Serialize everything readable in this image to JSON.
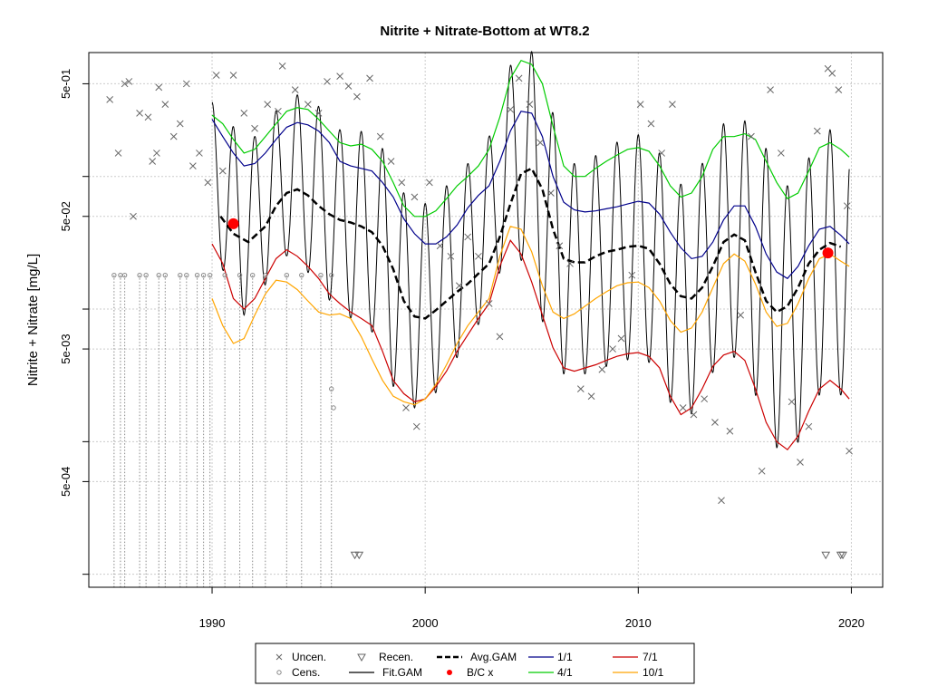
{
  "chart_data": {
    "type": "scatter",
    "title": "Nitrite + Nitrate-Bottom at WT8.2",
    "xlabel": "",
    "ylabel": "Nitrite + Nitrate [mg/L]",
    "y_scale": "log",
    "xlim": [
      1984.3,
      2021.3
    ],
    "ylim": [
      8.5e-05,
      0.82
    ],
    "x_ticks": [
      1990,
      2000,
      2010,
      2020
    ],
    "y_tick_labels": [
      "5e-04",
      "5e-03",
      "5e-02",
      "5e-01"
    ],
    "y_ticks": [
      0.0005,
      0.005,
      0.05,
      0.5
    ],
    "grid": true,
    "legend_position": "bottom",
    "legend": [
      {
        "key": "uncen",
        "label": "Uncen.",
        "symbol": "x",
        "color": "#666666"
      },
      {
        "key": "cens",
        "label": "Cens.",
        "symbol": "circle",
        "color": "#888888"
      },
      {
        "key": "recen",
        "label": "Recen.",
        "symbol": "triangle-down",
        "color": "#666666"
      },
      {
        "key": "fit",
        "label": "Fit.GAM",
        "symbol": "line",
        "color": "#000000"
      },
      {
        "key": "avg",
        "label": "Avg.GAM",
        "symbol": "dashed",
        "color": "#000000"
      },
      {
        "key": "bc",
        "label": "B/C x",
        "symbol": "dot",
        "color": "#ff0000"
      },
      {
        "key": "d1_1",
        "label": "1/1",
        "symbol": "line",
        "color": "#00008b"
      },
      {
        "key": "d4_1",
        "label": "4/1",
        "symbol": "line",
        "color": "#00cc00"
      },
      {
        "key": "d7_1",
        "label": "7/1",
        "symbol": "line",
        "color": "#cc0000"
      },
      {
        "key": "d10_1",
        "label": "10/1",
        "symbol": "line",
        "color": "#ffa500"
      }
    ],
    "series": [
      {
        "key": "avg",
        "name": "Avg.GAM",
        "color": "#000000",
        "x": [
          1990.4,
          1991,
          1991.7,
          1992.5,
          1993,
          1993.5,
          1994,
          1994.5,
          1995,
          1995.5,
          1996,
          1996.5,
          1997,
          1997.5,
          1998,
          1998.5,
          1999,
          1999.5,
          2000,
          2000.5,
          2001,
          2001.5,
          2002,
          2002.5,
          2003,
          2003.5,
          2004,
          2004.5,
          2005,
          2005.5,
          2006,
          2006.5,
          2007,
          2007.5,
          2008,
          2008.5,
          2009,
          2009.5,
          2010,
          2010.5,
          2011,
          2011.5,
          2012,
          2012.5,
          2013,
          2013.5,
          2014,
          2014.5,
          2015,
          2015.5,
          2016,
          2016.5,
          2017,
          2017.5,
          2018,
          2018.5,
          2019,
          2019.5
        ],
        "values": [
          0.05,
          0.037,
          0.032,
          0.042,
          0.06,
          0.075,
          0.08,
          0.072,
          0.06,
          0.052,
          0.047,
          0.045,
          0.042,
          0.038,
          0.03,
          0.02,
          0.0115,
          0.0088,
          0.0085,
          0.0098,
          0.0115,
          0.0135,
          0.0155,
          0.0185,
          0.022,
          0.035,
          0.062,
          0.105,
          0.115,
          0.08,
          0.04,
          0.024,
          0.0225,
          0.0225,
          0.025,
          0.027,
          0.028,
          0.0295,
          0.03,
          0.0285,
          0.022,
          0.0155,
          0.0125,
          0.012,
          0.0145,
          0.021,
          0.032,
          0.0365,
          0.033,
          0.019,
          0.0115,
          0.0095,
          0.0105,
          0.0145,
          0.022,
          0.028,
          0.0315,
          0.0295
        ]
      },
      {
        "key": "d1_1",
        "name": "1/1",
        "color": "#00008b",
        "x": [
          1990,
          1990.5,
          1991,
          1991.5,
          1992,
          1992.5,
          1993,
          1993.5,
          1994,
          1994.5,
          1995,
          1995.5,
          1996,
          1996.5,
          1997,
          1997.5,
          1998,
          1998.5,
          1999,
          1999.5,
          2000,
          2000.5,
          2001,
          2001.5,
          2002,
          2002.5,
          2003,
          2003.5,
          2004,
          2004.5,
          2005,
          2005.5,
          2006,
          2006.5,
          2007,
          2007.5,
          2008,
          2008.5,
          2009,
          2009.5,
          2010,
          2010.5,
          2011,
          2011.5,
          2012,
          2012.5,
          2013,
          2013.5,
          2014,
          2014.5,
          2015,
          2015.5,
          2016,
          2016.5,
          2017,
          2017.5,
          2018,
          2018.5,
          2019,
          2019.5,
          2019.9
        ],
        "values": [
          0.27,
          0.2,
          0.15,
          0.12,
          0.125,
          0.15,
          0.19,
          0.235,
          0.255,
          0.245,
          0.22,
          0.18,
          0.13,
          0.12,
          0.115,
          0.11,
          0.09,
          0.07,
          0.048,
          0.037,
          0.031,
          0.031,
          0.035,
          0.043,
          0.058,
          0.072,
          0.085,
          0.13,
          0.22,
          0.31,
          0.3,
          0.2,
          0.1,
          0.064,
          0.056,
          0.054,
          0.055,
          0.057,
          0.059,
          0.062,
          0.065,
          0.063,
          0.052,
          0.038,
          0.029,
          0.024,
          0.025,
          0.032,
          0.047,
          0.06,
          0.06,
          0.042,
          0.026,
          0.019,
          0.017,
          0.021,
          0.03,
          0.04,
          0.042,
          0.036,
          0.031
        ]
      },
      {
        "key": "d4_1",
        "name": "4/1",
        "color": "#00cc00",
        "x": [
          1990,
          1990.5,
          1991,
          1991.5,
          1992,
          1992.5,
          1993,
          1993.5,
          1994,
          1994.5,
          1995,
          1995.5,
          1996,
          1996.5,
          1997,
          1997.5,
          1998,
          1998.5,
          1999,
          1999.5,
          2000,
          2000.5,
          2001,
          2001.5,
          2002,
          2002.5,
          2003,
          2003.5,
          2004,
          2004.5,
          2005,
          2005.5,
          2006,
          2006.5,
          2007,
          2007.5,
          2008,
          2008.5,
          2009,
          2009.5,
          2010,
          2010.5,
          2011,
          2011.5,
          2012,
          2012.5,
          2013,
          2013.5,
          2014,
          2014.5,
          2015,
          2015.5,
          2016,
          2016.5,
          2017,
          2017.5,
          2018,
          2018.5,
          2019,
          2019.5,
          2019.9
        ],
        "values": [
          0.29,
          0.25,
          0.19,
          0.15,
          0.16,
          0.2,
          0.25,
          0.31,
          0.33,
          0.32,
          0.27,
          0.22,
          0.18,
          0.17,
          0.175,
          0.16,
          0.13,
          0.09,
          0.06,
          0.05,
          0.05,
          0.055,
          0.068,
          0.085,
          0.1,
          0.12,
          0.16,
          0.28,
          0.55,
          0.75,
          0.7,
          0.5,
          0.24,
          0.12,
          0.1,
          0.1,
          0.115,
          0.13,
          0.145,
          0.16,
          0.165,
          0.155,
          0.12,
          0.085,
          0.07,
          0.075,
          0.1,
          0.16,
          0.2,
          0.2,
          0.21,
          0.19,
          0.13,
          0.09,
          0.068,
          0.075,
          0.11,
          0.165,
          0.18,
          0.16,
          0.14
        ]
      },
      {
        "key": "d7_1",
        "name": "7/1",
        "color": "#cc0000",
        "x": [
          1990,
          1990.5,
          1991,
          1991.5,
          1992,
          1992.5,
          1993,
          1993.5,
          1994,
          1994.5,
          1995,
          1995.5,
          1996,
          1996.5,
          1997,
          1997.5,
          1998,
          1998.5,
          1999,
          1999.5,
          2000,
          2000.5,
          2001,
          2001.5,
          2002,
          2002.5,
          2003,
          2003.5,
          2004,
          2004.5,
          2005,
          2005.5,
          2006,
          2006.5,
          2007,
          2007.5,
          2008,
          2008.5,
          2009,
          2009.5,
          2010,
          2010.5,
          2011,
          2011.5,
          2012,
          2012.5,
          2013,
          2013.5,
          2014,
          2014.5,
          2015,
          2015.5,
          2016,
          2016.5,
          2017,
          2017.5,
          2018,
          2018.5,
          2019,
          2019.5,
          2019.9
        ],
        "values": [
          0.031,
          0.022,
          0.012,
          0.01,
          0.012,
          0.017,
          0.024,
          0.028,
          0.025,
          0.021,
          0.017,
          0.013,
          0.011,
          0.0095,
          0.0085,
          0.0075,
          0.0048,
          0.0029,
          0.0023,
          0.002,
          0.0021,
          0.0026,
          0.0034,
          0.0048,
          0.0064,
          0.0085,
          0.011,
          0.021,
          0.033,
          0.026,
          0.016,
          0.009,
          0.0051,
          0.0036,
          0.0034,
          0.0036,
          0.0038,
          0.0041,
          0.0044,
          0.0046,
          0.0047,
          0.0044,
          0.0036,
          0.0022,
          0.0016,
          0.0018,
          0.0025,
          0.0037,
          0.0045,
          0.0048,
          0.0041,
          0.0025,
          0.0014,
          0.001,
          0.00087,
          0.0011,
          0.0017,
          0.0025,
          0.0029,
          0.0025,
          0.0021
        ]
      },
      {
        "key": "d10_1",
        "name": "10/1",
        "color": "#ffa500",
        "x": [
          1990,
          1990.5,
          1991,
          1991.5,
          1992,
          1992.5,
          1993,
          1993.5,
          1994,
          1994.5,
          1995,
          1995.5,
          1996,
          1996.5,
          1997,
          1997.5,
          1998,
          1998.5,
          1999,
          1999.5,
          2000,
          2000.5,
          2001,
          2001.5,
          2002,
          2002.5,
          2003,
          2003.5,
          2004,
          2004.5,
          2005,
          2005.5,
          2006,
          2006.5,
          2007,
          2007.5,
          2008,
          2008.5,
          2009,
          2009.5,
          2010,
          2010.5,
          2011,
          2011.5,
          2012,
          2012.5,
          2013,
          2013.5,
          2014,
          2014.5,
          2015,
          2015.5,
          2016,
          2016.5,
          2017,
          2017.5,
          2018,
          2018.5,
          2019,
          2019.5,
          2019.9
        ],
        "values": [
          0.012,
          0.0075,
          0.0055,
          0.006,
          0.009,
          0.013,
          0.0165,
          0.016,
          0.014,
          0.0115,
          0.0095,
          0.009,
          0.0092,
          0.0085,
          0.0062,
          0.0042,
          0.0029,
          0.0022,
          0.002,
          0.0019,
          0.0021,
          0.0027,
          0.0038,
          0.0055,
          0.0075,
          0.0095,
          0.012,
          0.025,
          0.042,
          0.04,
          0.027,
          0.015,
          0.0095,
          0.0085,
          0.0092,
          0.0105,
          0.012,
          0.0135,
          0.015,
          0.0158,
          0.016,
          0.0145,
          0.0115,
          0.0082,
          0.0067,
          0.0072,
          0.0095,
          0.0145,
          0.022,
          0.026,
          0.023,
          0.0155,
          0.0095,
          0.0074,
          0.0078,
          0.011,
          0.017,
          0.024,
          0.026,
          0.023,
          0.021
        ]
      }
    ],
    "fit_gam": {
      "key": "fit",
      "name": "Fit.GAM",
      "color": "#000000",
      "x_start": 1990,
      "x_end": 2019.9,
      "cycle_years": 1
    },
    "bc_points": [
      {
        "x": 1991,
        "y": 0.044
      },
      {
        "x": 2018.9,
        "y": 0.0265
      }
    ],
    "uncensored": [
      {
        "x": 1985.2,
        "y": 0.38
      },
      {
        "x": 1985.6,
        "y": 0.15
      },
      {
        "x": 1985.9,
        "y": 0.5
      },
      {
        "x": 1986.1,
        "y": 0.52
      },
      {
        "x": 1986.3,
        "y": 0.05
      },
      {
        "x": 1986.6,
        "y": 0.3
      },
      {
        "x": 1987.0,
        "y": 0.28
      },
      {
        "x": 1987.2,
        "y": 0.13
      },
      {
        "x": 1987.4,
        "y": 0.15
      },
      {
        "x": 1987.5,
        "y": 0.47
      },
      {
        "x": 1987.8,
        "y": 0.35
      },
      {
        "x": 1988.2,
        "y": 0.2
      },
      {
        "x": 1988.5,
        "y": 0.25
      },
      {
        "x": 1988.8,
        "y": 0.5
      },
      {
        "x": 1989.1,
        "y": 0.12
      },
      {
        "x": 1989.4,
        "y": 0.15
      },
      {
        "x": 1989.8,
        "y": 0.09
      },
      {
        "x": 1990.2,
        "y": 0.58
      },
      {
        "x": 1990.5,
        "y": 0.11
      },
      {
        "x": 1991.0,
        "y": 0.58
      },
      {
        "x": 1991.5,
        "y": 0.3
      },
      {
        "x": 1992.0,
        "y": 0.23
      },
      {
        "x": 1992.6,
        "y": 0.35
      },
      {
        "x": 1993.1,
        "y": 0.31
      },
      {
        "x": 1993.3,
        "y": 0.68
      },
      {
        "x": 1993.9,
        "y": 0.45
      },
      {
        "x": 1994.5,
        "y": 0.35
      },
      {
        "x": 1995.0,
        "y": 0.3
      },
      {
        "x": 1995.4,
        "y": 0.52
      },
      {
        "x": 1996.0,
        "y": 0.57
      },
      {
        "x": 1996.4,
        "y": 0.48
      },
      {
        "x": 1996.8,
        "y": 0.4
      },
      {
        "x": 1997.4,
        "y": 0.55
      },
      {
        "x": 1997.9,
        "y": 0.2
      },
      {
        "x": 1998.4,
        "y": 0.13
      },
      {
        "x": 1998.9,
        "y": 0.09
      },
      {
        "x": 1999.5,
        "y": 0.07
      },
      {
        "x": 1999.1,
        "y": 0.0018
      },
      {
        "x": 1999.6,
        "y": 0.0013
      },
      {
        "x": 2000.2,
        "y": 0.09
      },
      {
        "x": 2000.7,
        "y": 0.03
      },
      {
        "x": 2001.2,
        "y": 0.025
      },
      {
        "x": 2001.6,
        "y": 0.015
      },
      {
        "x": 2002.0,
        "y": 0.035
      },
      {
        "x": 2002.5,
        "y": 0.025
      },
      {
        "x": 2003.0,
        "y": 0.011
      },
      {
        "x": 2003.5,
        "y": 0.0062
      },
      {
        "x": 2004.0,
        "y": 0.32
      },
      {
        "x": 2004.4,
        "y": 0.55
      },
      {
        "x": 2004.9,
        "y": 0.35
      },
      {
        "x": 2005.4,
        "y": 0.18
      },
      {
        "x": 2005.9,
        "y": 0.075
      },
      {
        "x": 2006.3,
        "y": 0.03
      },
      {
        "x": 2006.8,
        "y": 0.022
      },
      {
        "x": 2007.3,
        "y": 0.0025
      },
      {
        "x": 2007.8,
        "y": 0.0022
      },
      {
        "x": 2008.3,
        "y": 0.0035
      },
      {
        "x": 2008.8,
        "y": 0.005
      },
      {
        "x": 2009.2,
        "y": 0.006
      },
      {
        "x": 2009.7,
        "y": 0.018
      },
      {
        "x": 2010.1,
        "y": 0.35
      },
      {
        "x": 2010.6,
        "y": 0.25
      },
      {
        "x": 2011.1,
        "y": 0.15
      },
      {
        "x": 2011.6,
        "y": 0.35
      },
      {
        "x": 2012.1,
        "y": 0.0018
      },
      {
        "x": 2012.6,
        "y": 0.0016
      },
      {
        "x": 2013.1,
        "y": 0.0021
      },
      {
        "x": 2013.6,
        "y": 0.0014
      },
      {
        "x": 2013.9,
        "y": 0.00036
      },
      {
        "x": 2014.3,
        "y": 0.0012
      },
      {
        "x": 2014.8,
        "y": 0.009
      },
      {
        "x": 2015.3,
        "y": 0.2
      },
      {
        "x": 2015.8,
        "y": 0.0006
      },
      {
        "x": 2016.2,
        "y": 0.45
      },
      {
        "x": 2016.7,
        "y": 0.15
      },
      {
        "x": 2017.2,
        "y": 0.002
      },
      {
        "x": 2017.6,
        "y": 0.0007
      },
      {
        "x": 2018.0,
        "y": 0.0013
      },
      {
        "x": 2018.4,
        "y": 0.22
      },
      {
        "x": 2018.9,
        "y": 0.65
      },
      {
        "x": 2019.1,
        "y": 0.6
      },
      {
        "x": 2019.4,
        "y": 0.45
      },
      {
        "x": 2019.8,
        "y": 0.06
      },
      {
        "x": 2019.9,
        "y": 0.00085
      }
    ],
    "censored": [
      {
        "x": 1985.4,
        "y": 0.018
      },
      {
        "x": 1985.7,
        "y": 0.018
      },
      {
        "x": 1985.9,
        "y": 0.018
      },
      {
        "x": 1986.6,
        "y": 0.018
      },
      {
        "x": 1986.9,
        "y": 0.018
      },
      {
        "x": 1987.5,
        "y": 0.018
      },
      {
        "x": 1987.8,
        "y": 0.018
      },
      {
        "x": 1988.5,
        "y": 0.018
      },
      {
        "x": 1988.8,
        "y": 0.018
      },
      {
        "x": 1989.3,
        "y": 0.018
      },
      {
        "x": 1989.6,
        "y": 0.018
      },
      {
        "x": 1989.9,
        "y": 0.018
      },
      {
        "x": 1990.6,
        "y": 0.018
      },
      {
        "x": 1991.3,
        "y": 0.018
      },
      {
        "x": 1991.9,
        "y": 0.018
      },
      {
        "x": 1992.5,
        "y": 0.018
      },
      {
        "x": 1993.5,
        "y": 0.018
      },
      {
        "x": 1994.2,
        "y": 0.018
      },
      {
        "x": 1995.1,
        "y": 0.018
      },
      {
        "x": 1995.6,
        "y": 0.018
      },
      {
        "x": 1995.6,
        "y": 0.0025
      },
      {
        "x": 1995.7,
        "y": 0.0018
      }
    ],
    "recensored": [
      {
        "x": 1996.7,
        "y": 0.00014
      },
      {
        "x": 1996.9,
        "y": 0.00014
      },
      {
        "x": 2018.8,
        "y": 0.00014
      },
      {
        "x": 2019.5,
        "y": 0.00014
      },
      {
        "x": 2019.6,
        "y": 0.00014
      }
    ]
  }
}
